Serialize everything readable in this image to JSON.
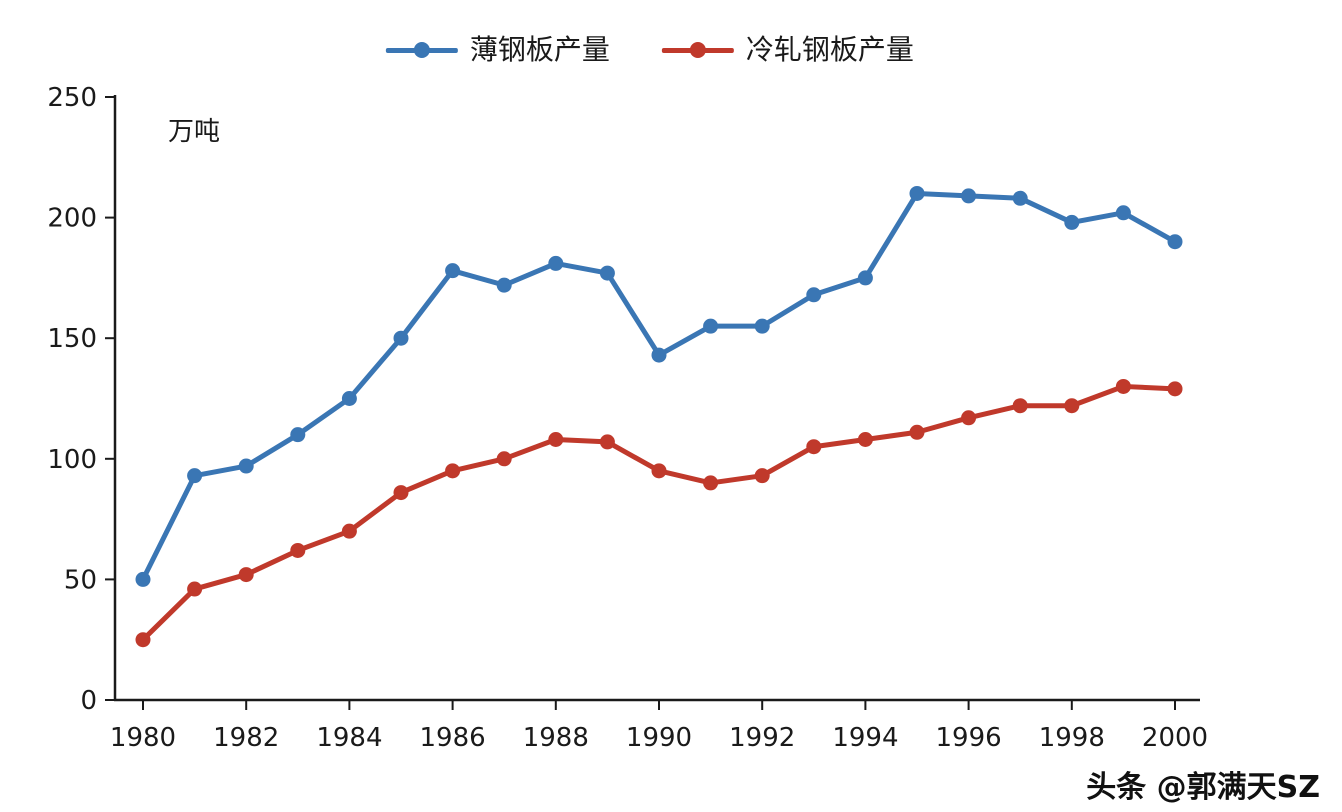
{
  "watermark": "头条 @郭满天SZ",
  "chart_data": {
    "type": "line",
    "title": "",
    "unit_label": "万吨",
    "xlabel": "",
    "ylabel": "",
    "x": [
      1980,
      1981,
      1982,
      1983,
      1984,
      1985,
      1986,
      1987,
      1988,
      1989,
      1990,
      1991,
      1992,
      1993,
      1994,
      1995,
      1996,
      1997,
      1998,
      1999,
      2000
    ],
    "x_tick_labels": [
      "1980",
      "1982",
      "1984",
      "1986",
      "1988",
      "1990",
      "1992",
      "1994",
      "1996",
      "1998",
      "2000"
    ],
    "ylim": [
      0,
      250
    ],
    "y_ticks": [
      0,
      50,
      100,
      150,
      200,
      250
    ],
    "grid": false,
    "legend_position": "top",
    "axis_color": "#1a1a1a",
    "text_color": "#1a1a1a",
    "series": [
      {
        "name": "薄钢板产量",
        "color": "#3A76B4",
        "marker": "circle",
        "values": [
          50,
          93,
          97,
          110,
          125,
          150,
          178,
          172,
          181,
          177,
          143,
          155,
          155,
          168,
          175,
          210,
          209,
          208,
          198,
          202,
          190
        ]
      },
      {
        "name": "冷轧钢板产量",
        "color": "#C0392B",
        "marker": "circle",
        "values": [
          25,
          46,
          52,
          62,
          70,
          86,
          95,
          100,
          108,
          107,
          95,
          90,
          93,
          105,
          108,
          111,
          117,
          122,
          122,
          130,
          129
        ]
      }
    ]
  }
}
